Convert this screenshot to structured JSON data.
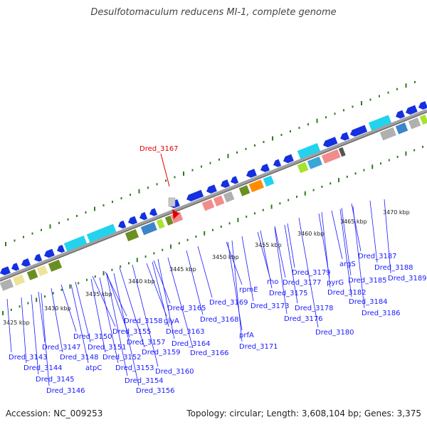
{
  "title": "Desulfotomaculum reducens MI-1, complete genome",
  "footer": {
    "accession": "Accession: NC_009253",
    "summary": "Topology: circular; Length: 3,608,104 bp; Genes: 3,375"
  },
  "colors": {
    "gene_label": "#1a1aff",
    "highlight": "#e00000",
    "backbone": "#808080",
    "dots": "#2e7d1c",
    "cds_blue": "#1530e0",
    "cyan": "#22d3ee",
    "pink": "#f28b8b",
    "grey": "#b0b0b0",
    "olive": "#6b8e23",
    "yellow": "#efe39a",
    "orange": "#ff8c00",
    "lime": "#a6e22e"
  },
  "scale_labels": [
    "3425 kbp",
    "3430 kbp",
    "3435 kbp",
    "3440 kbp",
    "3445 kbp",
    "3450 kbp",
    "3455 kbp",
    "3460 kbp",
    "3465 kbp",
    "3470 kbp"
  ],
  "highlight_gene": "Dred_3167",
  "gene_labels": [
    "Dred_3143",
    "Dred_3144",
    "Dred_3145",
    "Dred_3146",
    "Dred_3147",
    "Dred_3148",
    "atpC",
    "Dred_3150",
    "Dred_3151",
    "Dred_3152",
    "Dred_3153",
    "Dred_3154",
    "Dred_3155",
    "Dred_3156",
    "Dred_3157",
    "Dred_3158",
    "Dred_3159",
    "Dred_3160",
    "glyA",
    "Dred_3163",
    "Dred_3164",
    "Dred_3165",
    "Dred_3166",
    "Dred_3168",
    "Dred_3169",
    "prfA",
    "Dred_3171",
    "rpmE",
    "Dred_3173",
    "rho",
    "Dred_3175",
    "Dred_3176",
    "Dred_3177",
    "Dred_3178",
    "Dred_3179",
    "Dred_3180",
    "pyrG",
    "argS",
    "Dred_3182",
    "Dred_3184",
    "Dred_3185",
    "Dred_3186",
    "Dred_3187",
    "Dred_3188",
    "Dred_3189"
  ]
}
